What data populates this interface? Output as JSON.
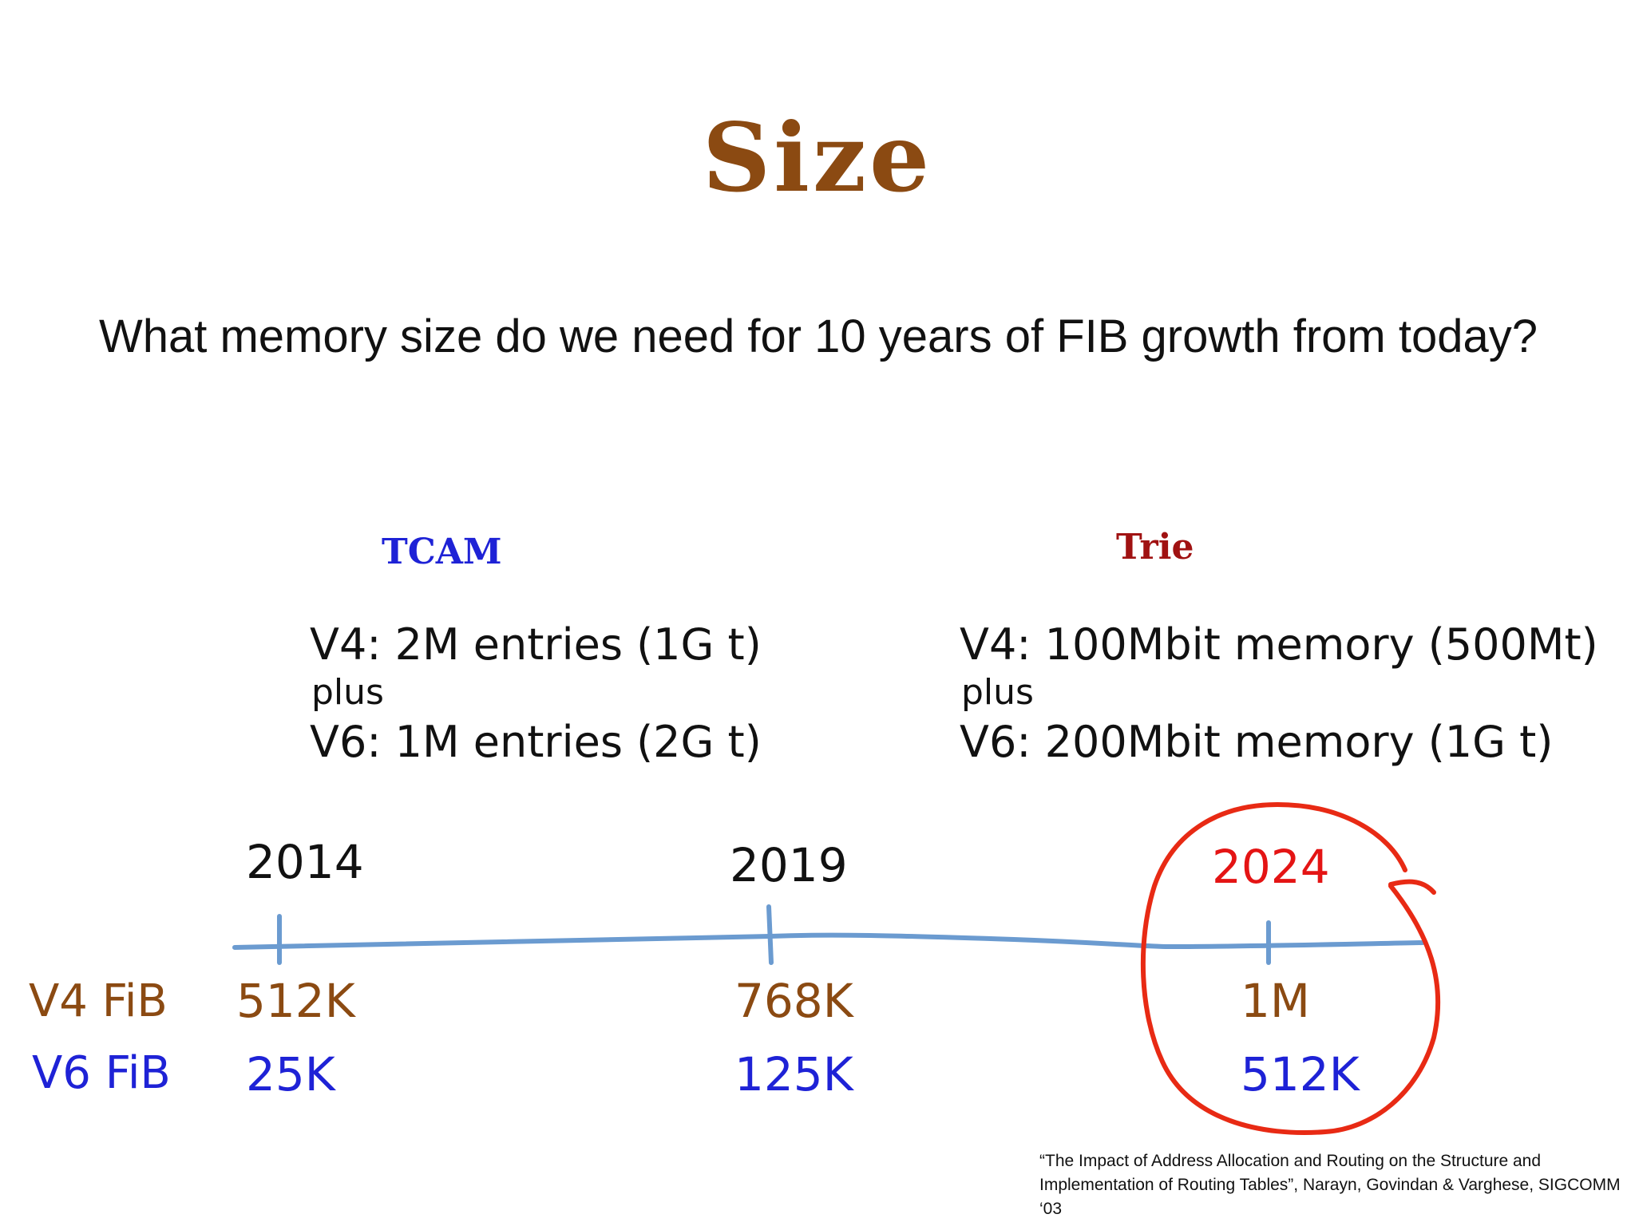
{
  "title": "Size",
  "question": "What memory size do we need for 10 years of FIB growth from today?",
  "columns": {
    "tcam": {
      "heading": "TCAM",
      "v4": "V4: 2M entries (1G t)",
      "plus": "plus",
      "v6": "V6: 1M entries (2G t)"
    },
    "trie": {
      "heading": "Trie",
      "v4": "V4: 100Mbit memory (500Mt)",
      "plus": "plus",
      "v6": "V6: 200Mbit memory (1G t)"
    }
  },
  "timeline": {
    "years": [
      "2014",
      "2019",
      "2024"
    ],
    "row_labels": {
      "v4": "V4 FiB",
      "v6": "V6 FiB"
    },
    "v4_values": [
      "512K",
      "768K",
      "1M"
    ],
    "v6_values": [
      "25K",
      "125K",
      "512K"
    ],
    "highlighted_year": "2024"
  },
  "citation": "“The Impact of Address Allocation and Routing on the Structure and Implementation of Routing Tables”, Narayn, Govindan & Varghese, SIGCOMM ‘03",
  "colors": {
    "title": "#8b4a12",
    "tcam_heading": "#1e22d6",
    "trie_heading": "#a01212",
    "v4_values": "#8b4a12",
    "v6_values": "#1e22d6",
    "timeline": "#6b9bd0",
    "highlight": "#e41414"
  }
}
